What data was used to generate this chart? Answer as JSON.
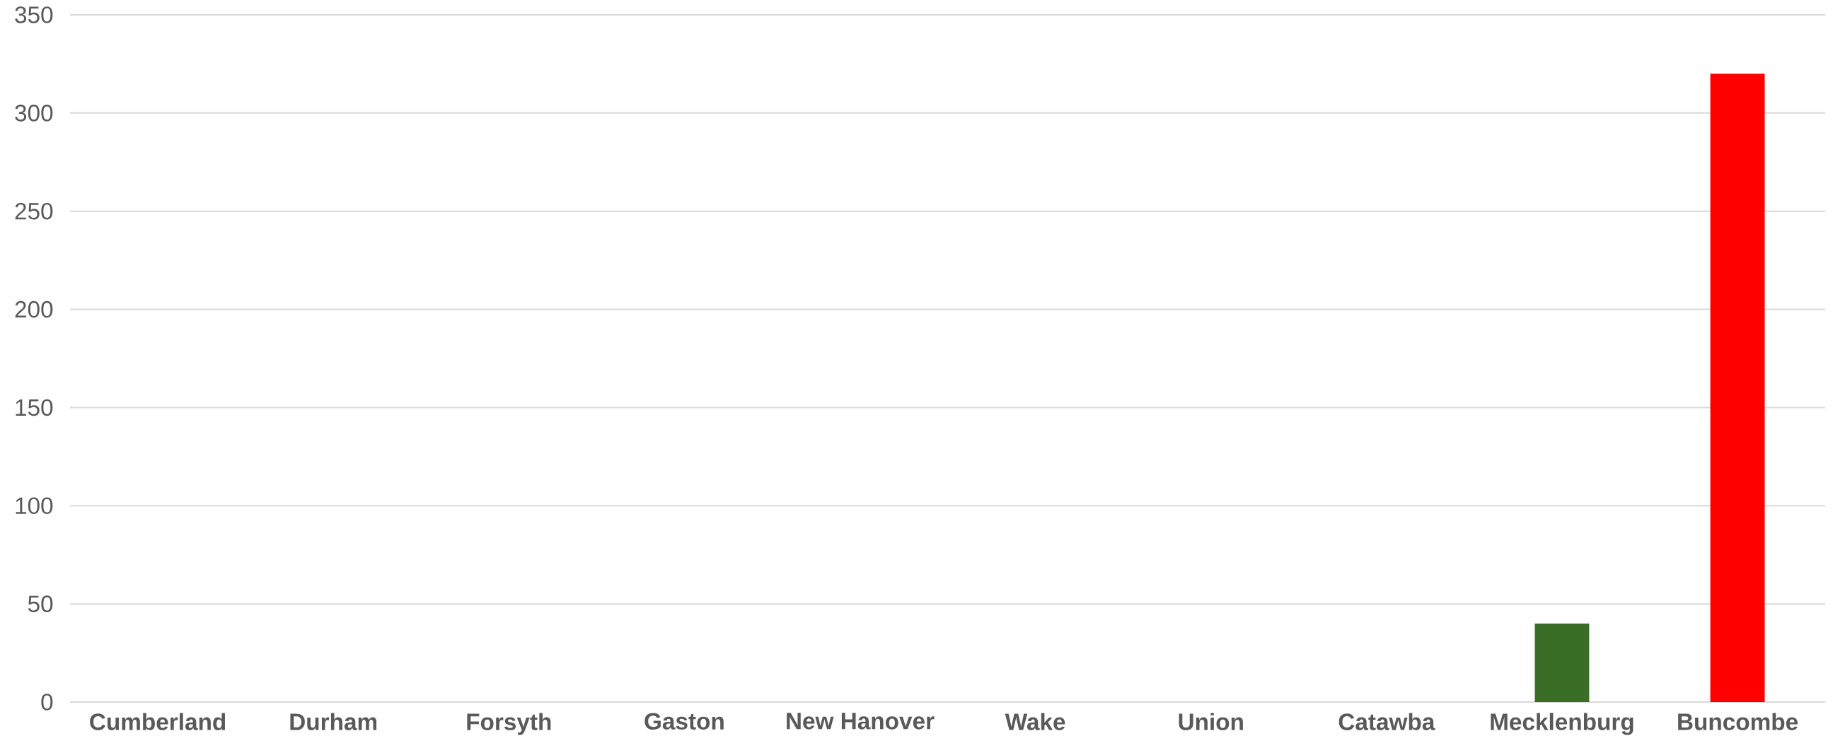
{
  "chart_data": {
    "type": "bar",
    "categories": [
      "Cumberland",
      "Durham",
      "Forsyth",
      "Gaston",
      "New Hanover",
      "Wake",
      "Union",
      "Catawba",
      "Mecklenburg",
      "Buncombe"
    ],
    "values": [
      0,
      0,
      0,
      0,
      0,
      0,
      0,
      0,
      40,
      320
    ],
    "colors": [
      "#3a6e26",
      "#3a6e26",
      "#3a6e26",
      "#3a6e26",
      "#3a6e26",
      "#3a6e26",
      "#3a6e26",
      "#3a6e26",
      "#3a6e26",
      "#ff0000"
    ],
    "ylim": [
      0,
      350
    ],
    "yticks": [
      0,
      50,
      100,
      150,
      200,
      250,
      300,
      350
    ],
    "grid": "y"
  }
}
